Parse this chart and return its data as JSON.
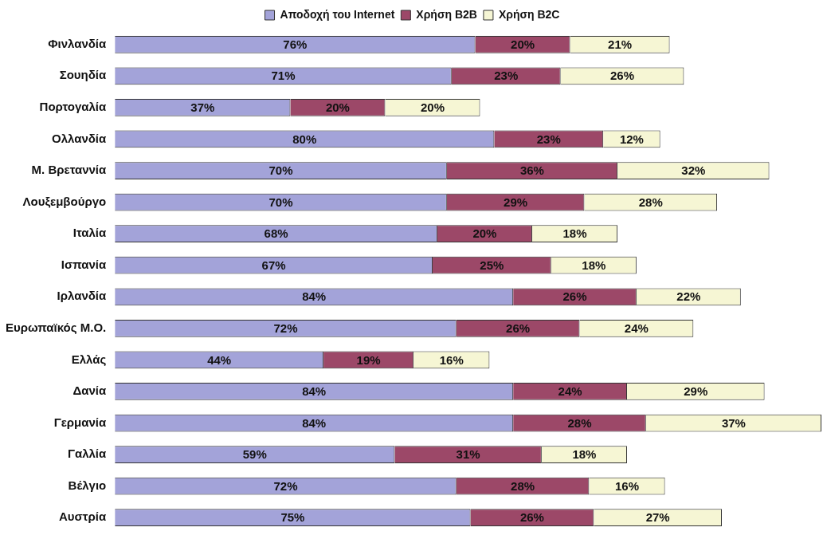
{
  "chart_data": {
    "type": "bar",
    "orientation": "horizontal",
    "stacked": true,
    "legend": "top",
    "tick_labels": "y",
    "categories": [
      "Φινλανδία",
      "Σουηδία",
      "Πορτογαλία",
      "Ολλανδία",
      "Μ. Βρεταννία",
      "Λουξεμβούργο",
      "Ιταλία",
      "Ισπανία",
      "Ιρλανδία",
      "Ευρωπαϊκός Μ.Ο.",
      "Ελλάς",
      "Δανία",
      "Γερμανία",
      "Γαλλία",
      "Βέλγιο",
      "Αυστρία"
    ],
    "series": [
      {
        "name": "Αποδοχή του Internet",
        "color": "#a3a3d9",
        "values": [
          76,
          71,
          37,
          80,
          70,
          70,
          68,
          67,
          84,
          72,
          44,
          84,
          84,
          59,
          72,
          75
        ],
        "value_labels": [
          "76%",
          "71%",
          "37%",
          "80%",
          "70%",
          "70%",
          "68%",
          "67%",
          "84%",
          "72%",
          "44%",
          "84%",
          "84%",
          "59%",
          "72%",
          "75%"
        ]
      },
      {
        "name": "Χρήση B2B",
        "color": "#9c4868",
        "values": [
          20,
          23,
          20,
          23,
          36,
          29,
          20,
          25,
          26,
          26,
          19,
          24,
          28,
          31,
          28,
          26
        ],
        "value_labels": [
          "20%",
          "23%",
          "20%",
          "23%",
          "36%",
          "29%",
          "20%",
          "25%",
          "26%",
          "26%",
          "19%",
          "24%",
          "28%",
          "31%",
          "28%",
          "26%"
        ]
      },
      {
        "name": "Χρήση B2C",
        "color": "#f6f6d4",
        "values": [
          21,
          26,
          20,
          12,
          32,
          28,
          18,
          18,
          22,
          24,
          16,
          29,
          37,
          18,
          16,
          27
        ],
        "value_labels": [
          "21%",
          "26%",
          "20%",
          "12%",
          "32%",
          "28%",
          "18%",
          "18%",
          "22%",
          "24%",
          "16%",
          "29%",
          "37%",
          "18%",
          "16%",
          "27%"
        ]
      }
    ]
  }
}
